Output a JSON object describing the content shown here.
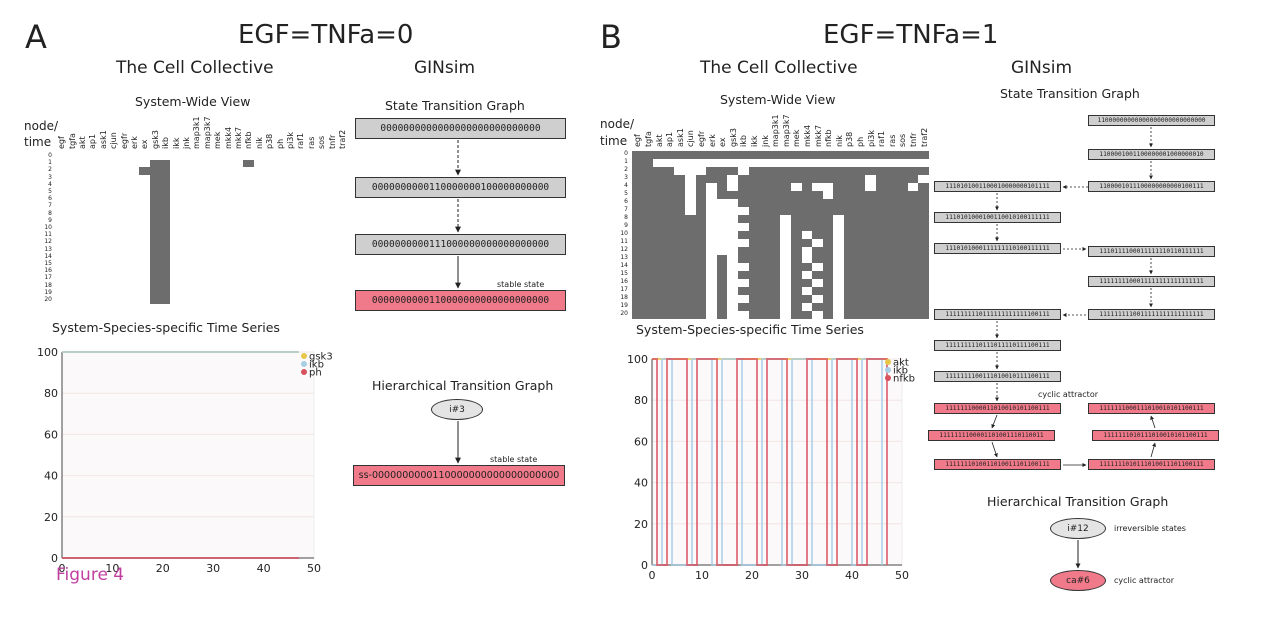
{
  "panelA": {
    "letter": "A",
    "condition": "EGF=TNFa=0",
    "cc_title": "The Cell Collective",
    "ginsim_title": "GINsim",
    "swv_title": "System-Wide View",
    "node_label": "node/",
    "time_label": "time",
    "nodes": [
      "egf",
      "tgfa",
      "akt",
      "ap1",
      "ask1",
      "cjun",
      "egfr",
      "erk",
      "ex",
      "gsk3",
      "ikb",
      "ikk",
      "jnk",
      "map3k1",
      "map3k7",
      "mek",
      "mkk4",
      "mkk7",
      "nfkb",
      "nik",
      "p38",
      "ph",
      "pi3k",
      "raf1",
      "ras",
      "sos",
      "tnfr",
      "traf2"
    ],
    "times": [
      "0",
      "1",
      "2",
      "3",
      "4",
      "5",
      "6",
      "7",
      "8",
      "9",
      "10",
      "11",
      "12",
      "13",
      "14",
      "15",
      "16",
      "17",
      "18",
      "19",
      "20"
    ],
    "sst_title": "System-Species-specific Time Series",
    "stg_title": "State Transition Graph",
    "stg_states": [
      "0000000000000000000000000000",
      "0000000000110000000100000000000",
      "0000000000111000000000000000000",
      "0000000000110000000000000000000"
    ],
    "stable_label": "stable state",
    "htg_title": "Hierarchical Transition Graph",
    "htg_node": "i#3",
    "htg_state": "ss-0000000000110000000000000000000",
    "legend": [
      {
        "name": "gsk3",
        "color": "#e8c64a"
      },
      {
        "name": "ikb",
        "color": "#a9cde6"
      },
      {
        "name": "ph",
        "color": "#d9505f"
      }
    ],
    "figure_label": "Figure 4"
  },
  "panelB": {
    "letter": "B",
    "condition": "EGF=TNFa=1",
    "cc_title": "The Cell Collective",
    "ginsim_title": "GINsim",
    "swv_title": "System-Wide View",
    "node_label": "node/",
    "time_label": "time",
    "nodes": [
      "egf",
      "tgfa",
      "akt",
      "ap1",
      "ask1",
      "cjun",
      "egfr",
      "erk",
      "ex",
      "gsk3",
      "ikb",
      "ikk",
      "jnk",
      "map3k1",
      "map3k7",
      "mek",
      "mkk4",
      "mkk7",
      "nfkb",
      "nik",
      "p38",
      "ph",
      "pi3k",
      "raf1",
      "ras",
      "sos",
      "tnfr",
      "traf2"
    ],
    "times": [
      "0",
      "1",
      "2",
      "3",
      "4",
      "5",
      "6",
      "7",
      "8",
      "9",
      "10",
      "11",
      "12",
      "13",
      "14",
      "15",
      "16",
      "17",
      "18",
      "19",
      "20"
    ],
    "sst_title": "System-Species-specific Time Series",
    "stg_title": "State Transition Graph",
    "stg_left": [
      "1110101001100010000000101111",
      "1110101000100110010100111111",
      "1110101000111111110100111111",
      "1111111110111111111111100111",
      "1111111110111011110111100111",
      "1111111100111010010111100111"
    ],
    "stg_right": [
      "11000000000000000000000000000",
      "1100001001100000001000000010",
      "1100001011100000000000100111",
      "1110111100011111110110111111",
      "1111111100011111111111111111",
      "1111111110011111111111111111"
    ],
    "cyclic_label": "cyclic attractor",
    "cycle_states": [
      "1111111000011010010101100111",
      "1111111000111010010101100111",
      "1111111100001101001110110011",
      "1111111010111010010101100111",
      "1111111010011010011101100111",
      "1111111010111010011101100111"
    ],
    "htg_title": "Hierarchical Transition Graph",
    "htg_node1": "i#12",
    "htg_node1_label": "irreversible states",
    "htg_node2": "ca#6",
    "htg_node2_label": "cyclic attractor",
    "legend": [
      {
        "name": "akt",
        "color": "#e8c64a"
      },
      {
        "name": "ikb",
        "color": "#a9cde6"
      },
      {
        "name": "nfkb",
        "color": "#d9505f"
      }
    ]
  },
  "chart_data": [
    {
      "type": "line",
      "title": "System-Species-specific Time Series",
      "x_ticks": [
        "0",
        "10",
        "20",
        "30",
        "40",
        "50"
      ],
      "y_ticks": [
        "0",
        "20",
        "40",
        "60",
        "80",
        "100"
      ],
      "xlim": [
        0,
        50
      ],
      "ylim": [
        0,
        100
      ],
      "series": [
        {
          "name": "gsk3",
          "color": "#e8c64a",
          "x": [
            0,
            47
          ],
          "values": [
            100,
            100
          ]
        },
        {
          "name": "ikb",
          "color": "#a9cde6",
          "x": [
            0,
            47
          ],
          "values": [
            100,
            100
          ]
        },
        {
          "name": "ph",
          "color": "#d9505f",
          "x": [
            0,
            47
          ],
          "values": [
            0,
            0
          ]
        }
      ]
    },
    {
      "type": "line",
      "title": "System-Species-specific Time Series",
      "x_ticks": [
        "0",
        "10",
        "20",
        "30",
        "40",
        "50"
      ],
      "y_ticks": [
        "0",
        "20",
        "40",
        "60",
        "80",
        "100"
      ],
      "xlim": [
        0,
        50
      ],
      "ylim": [
        0,
        100
      ],
      "series": [
        {
          "name": "akt",
          "color": "#e8c64a",
          "x": [
            0,
            47
          ],
          "values": [
            100,
            100
          ]
        },
        {
          "name": "ikb",
          "color": "#a9cde6",
          "x": [
            0,
            2,
            4,
            6,
            8,
            10,
            12,
            14,
            16,
            18,
            20,
            22,
            24,
            26,
            28,
            30,
            32,
            34,
            36,
            38,
            40,
            42,
            44,
            46
          ],
          "values": [
            0,
            100,
            0,
            0,
            100,
            100,
            0,
            100,
            100,
            0,
            0,
            100,
            100,
            0,
            100,
            100,
            0,
            0,
            100,
            100,
            0,
            100,
            100,
            0
          ]
        },
        {
          "name": "nfkb",
          "color": "#d9505f",
          "x": [
            0,
            1,
            3,
            5,
            7,
            9,
            11,
            13,
            15,
            17,
            19,
            21,
            23,
            25,
            27,
            29,
            31,
            33,
            35,
            37,
            39,
            41,
            43,
            45,
            47
          ],
          "values": [
            100,
            0,
            100,
            100,
            0,
            100,
            100,
            0,
            0,
            100,
            100,
            0,
            100,
            100,
            0,
            0,
            100,
            100,
            0,
            100,
            100,
            0,
            100,
            100,
            0
          ]
        }
      ]
    }
  ]
}
